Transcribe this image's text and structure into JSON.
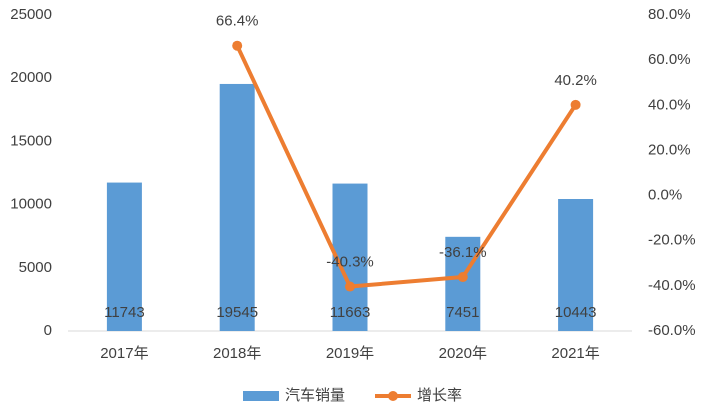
{
  "chart_data": {
    "type": "bar_line",
    "categories": [
      "2017年",
      "2018年",
      "2019年",
      "2020年",
      "2021年"
    ],
    "series": [
      {
        "name": "汽车销量",
        "type": "bar",
        "color": "#5b9bd5",
        "values": [
          11743,
          19545,
          11663,
          7451,
          10443
        ]
      },
      {
        "name": "增长率",
        "type": "line",
        "axis": "y2",
        "color": "#ed7d31",
        "values": [
          null,
          66.4,
          -40.3,
          -36.1,
          40.2
        ],
        "value_labels": [
          null,
          "66.4%",
          "-40.3%",
          "-36.1%",
          "40.2%"
        ]
      }
    ],
    "ylim": [
      0,
      25000
    ],
    "yticks": [
      0,
      5000,
      10000,
      15000,
      20000,
      25000
    ],
    "y2lim": [
      -60,
      80
    ],
    "y2ticks": [
      {
        "value": -60,
        "label": "-60.0%"
      },
      {
        "value": -40,
        "label": "-40.0%"
      },
      {
        "value": -20,
        "label": "-20.0%"
      },
      {
        "value": 0,
        "label": "0.0%"
      },
      {
        "value": 20,
        "label": "20.0%"
      },
      {
        "value": 40,
        "label": "40.0%"
      },
      {
        "value": 60,
        "label": "60.0%"
      },
      {
        "value": 80,
        "label": "80.0%"
      }
    ],
    "legend": "bottom"
  }
}
